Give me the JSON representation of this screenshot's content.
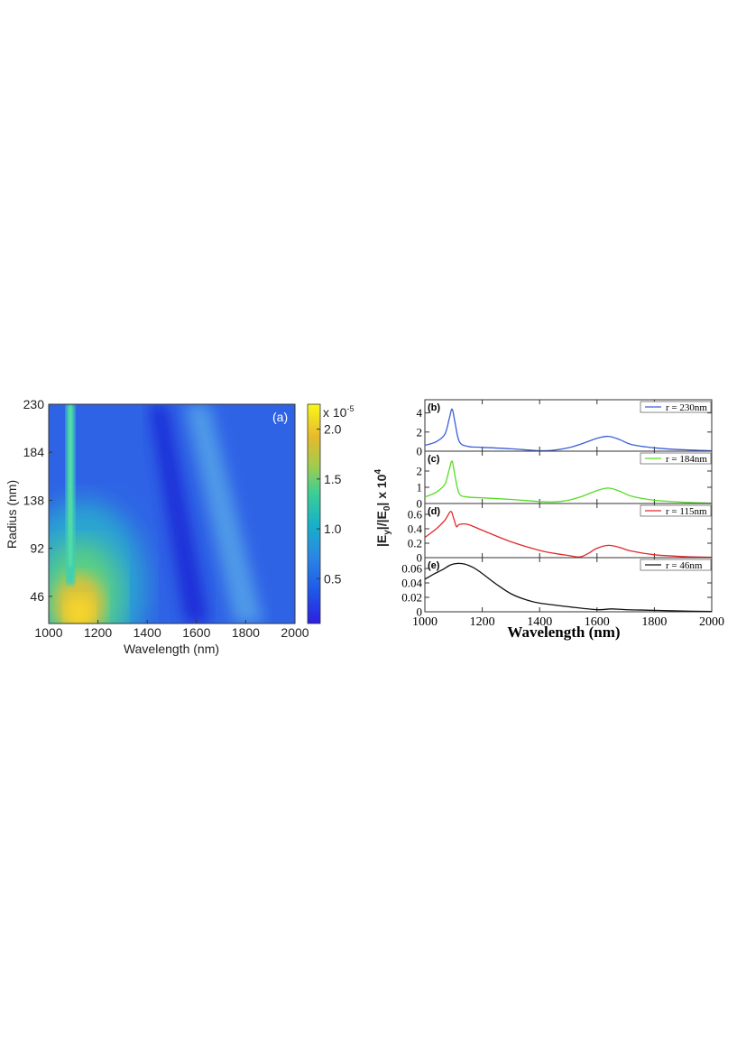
{
  "chart_data": [
    {
      "type": "heatmap",
      "panel_label": "(a)",
      "xlabel": "Wavelength (nm)",
      "ylabel": "Radius (nm)",
      "xlim": [
        1000,
        2000
      ],
      "ylim": [
        20,
        230
      ],
      "x_ticks": [
        "1000",
        "1200",
        "1400",
        "1600",
        "1800",
        "2000"
      ],
      "y_ticks": [
        "46",
        "92",
        "138",
        "184",
        "230"
      ],
      "colorbar": {
        "exponent_label": "x 10",
        "exponent": "-5",
        "ticks": [
          "0.5",
          "1.0",
          "1.5",
          "2.0"
        ],
        "range": [
          0.05,
          2.25
        ],
        "colormap": "parula"
      },
      "features": {
        "resonance_1": {
          "center_wavelength": 1090,
          "note": "narrow ridge across all radii"
        },
        "broad_max": {
          "wavelength": 1130,
          "radius": 35,
          "value": 2.1
        },
        "minimum_band": {
          "from": [
            1420,
            230
          ],
          "to": [
            1620,
            20
          ]
        },
        "resonance_2": {
          "from": [
            1600,
            230
          ],
          "to": [
            1800,
            20
          ]
        }
      }
    },
    {
      "type": "line",
      "xlabel": "Wavelength (nm)",
      "ylabel_parts": {
        "a": "|E",
        "sub1": "y",
        "b": "|/|E",
        "sub2": "0",
        "c": "| x 10",
        "sup": "4"
      },
      "xlim": [
        1000,
        2000
      ],
      "x_ticks": [
        "1000",
        "1200",
        "1400",
        "1600",
        "1800",
        "2000"
      ],
      "panels": [
        {
          "tag": "(b)",
          "legend": "r = 230nm",
          "color": "#3a5fd8",
          "ylim": [
            0,
            5.0
          ],
          "yticks": [
            "0",
            "2",
            "4"
          ],
          "ytick_values": [
            0,
            2,
            4
          ],
          "x": [
            1000,
            1040,
            1070,
            1085,
            1095,
            1105,
            1120,
            1150,
            1200,
            1300,
            1400,
            1450,
            1500,
            1550,
            1600,
            1640,
            1680,
            1720,
            1800,
            1900,
            2000
          ],
          "y": [
            0.6,
            1.0,
            1.8,
            3.4,
            4.4,
            3.0,
            1.0,
            0.5,
            0.4,
            0.25,
            0.05,
            0.1,
            0.35,
            0.8,
            1.35,
            1.55,
            1.2,
            0.7,
            0.35,
            0.15,
            0.05
          ]
        },
        {
          "tag": "(c)",
          "legend": "r = 184nm",
          "color": "#55dd22",
          "ylim": [
            0,
            3.0
          ],
          "yticks": [
            "0",
            "1",
            "2"
          ],
          "ytick_values": [
            0,
            1,
            2
          ],
          "x": [
            1000,
            1040,
            1070,
            1085,
            1095,
            1105,
            1120,
            1150,
            1200,
            1300,
            1400,
            1450,
            1500,
            1550,
            1600,
            1640,
            1680,
            1720,
            1800,
            1900,
            2000
          ],
          "y": [
            0.4,
            0.7,
            1.2,
            2.1,
            2.6,
            1.7,
            0.6,
            0.4,
            0.35,
            0.25,
            0.12,
            0.1,
            0.2,
            0.45,
            0.8,
            0.95,
            0.75,
            0.45,
            0.2,
            0.08,
            0.02
          ]
        },
        {
          "tag": "(d)",
          "legend": "r = 115nm",
          "color": "#e02a2a",
          "ylim": [
            0,
            0.7
          ],
          "yticks": [
            "0",
            "0.2",
            "0.4",
            "0.6"
          ],
          "ytick_values": [
            0,
            0.2,
            0.4,
            0.6
          ],
          "x": [
            1000,
            1040,
            1070,
            1090,
            1100,
            1110,
            1120,
            1150,
            1200,
            1300,
            1400,
            1450,
            1500,
            1540,
            1570,
            1600,
            1640,
            1680,
            1720,
            1800,
            1900,
            2000
          ],
          "y": [
            0.28,
            0.4,
            0.52,
            0.64,
            0.55,
            0.43,
            0.46,
            0.46,
            0.38,
            0.22,
            0.1,
            0.06,
            0.03,
            0.01,
            0.06,
            0.13,
            0.17,
            0.14,
            0.09,
            0.04,
            0.015,
            0.005
          ]
        },
        {
          "tag": "(e)",
          "legend": "r = 46nm",
          "color": "#111111",
          "ylim": [
            0,
            0.07
          ],
          "yticks": [
            "0",
            "0.02",
            "0.04",
            "0.06"
          ],
          "ytick_values": [
            0,
            0.02,
            0.04,
            0.06
          ],
          "x": [
            1000,
            1030,
            1060,
            1090,
            1115,
            1140,
            1170,
            1200,
            1250,
            1300,
            1350,
            1400,
            1500,
            1600,
            1650,
            1700,
            1800,
            1900,
            2000
          ],
          "y": [
            0.045,
            0.052,
            0.058,
            0.065,
            0.067,
            0.066,
            0.061,
            0.053,
            0.038,
            0.025,
            0.017,
            0.012,
            0.007,
            0.003,
            0.004,
            0.003,
            0.002,
            0.001,
            0.0005
          ]
        }
      ]
    }
  ]
}
